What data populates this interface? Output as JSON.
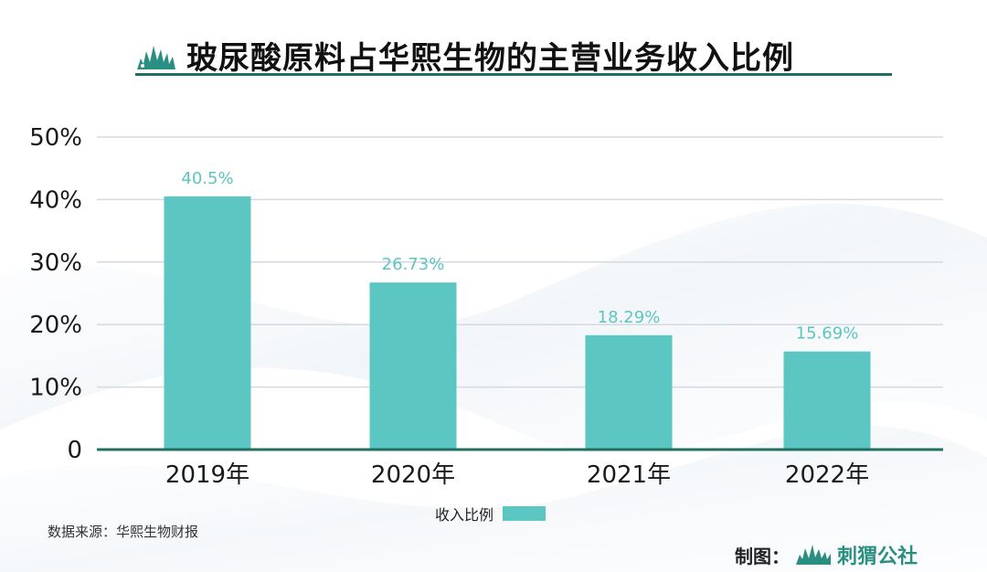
{
  "title": "玻尿酸原料占华熙生物的主营业务收入比例",
  "source": "数据来源：华熙生物财报",
  "credit": {
    "label": "制图：",
    "brand": "刺猬公社"
  },
  "colors": {
    "bar": "#5bc6c2",
    "axis": "#1f6f62",
    "title_underline": "#1f6f62",
    "grid": "#d4dadf",
    "value_label": "#5bc6c2",
    "tick_text": "#1a1a1a"
  },
  "icons": [
    "hedgehog-logo-icon"
  ],
  "chart_data": {
    "type": "bar",
    "title": "玻尿酸原料占华熙生物的主营业务收入比例",
    "categories": [
      "2019年",
      "2020年",
      "2021年",
      "2022年"
    ],
    "series": [
      {
        "name": "收入比例",
        "values": [
          40.5,
          26.73,
          18.29,
          15.69
        ],
        "value_labels": [
          "40.5%",
          "26.73%",
          "18.29%",
          "15.69%"
        ]
      }
    ],
    "ylim": [
      0,
      50
    ],
    "yticks": [
      0,
      10,
      20,
      30,
      40,
      50
    ],
    "ytick_labels": [
      "0",
      "10%",
      "20%",
      "30%",
      "40%",
      "50%"
    ],
    "xlabel": "",
    "ylabel": "",
    "grid": true,
    "legend": "bottom-center"
  }
}
